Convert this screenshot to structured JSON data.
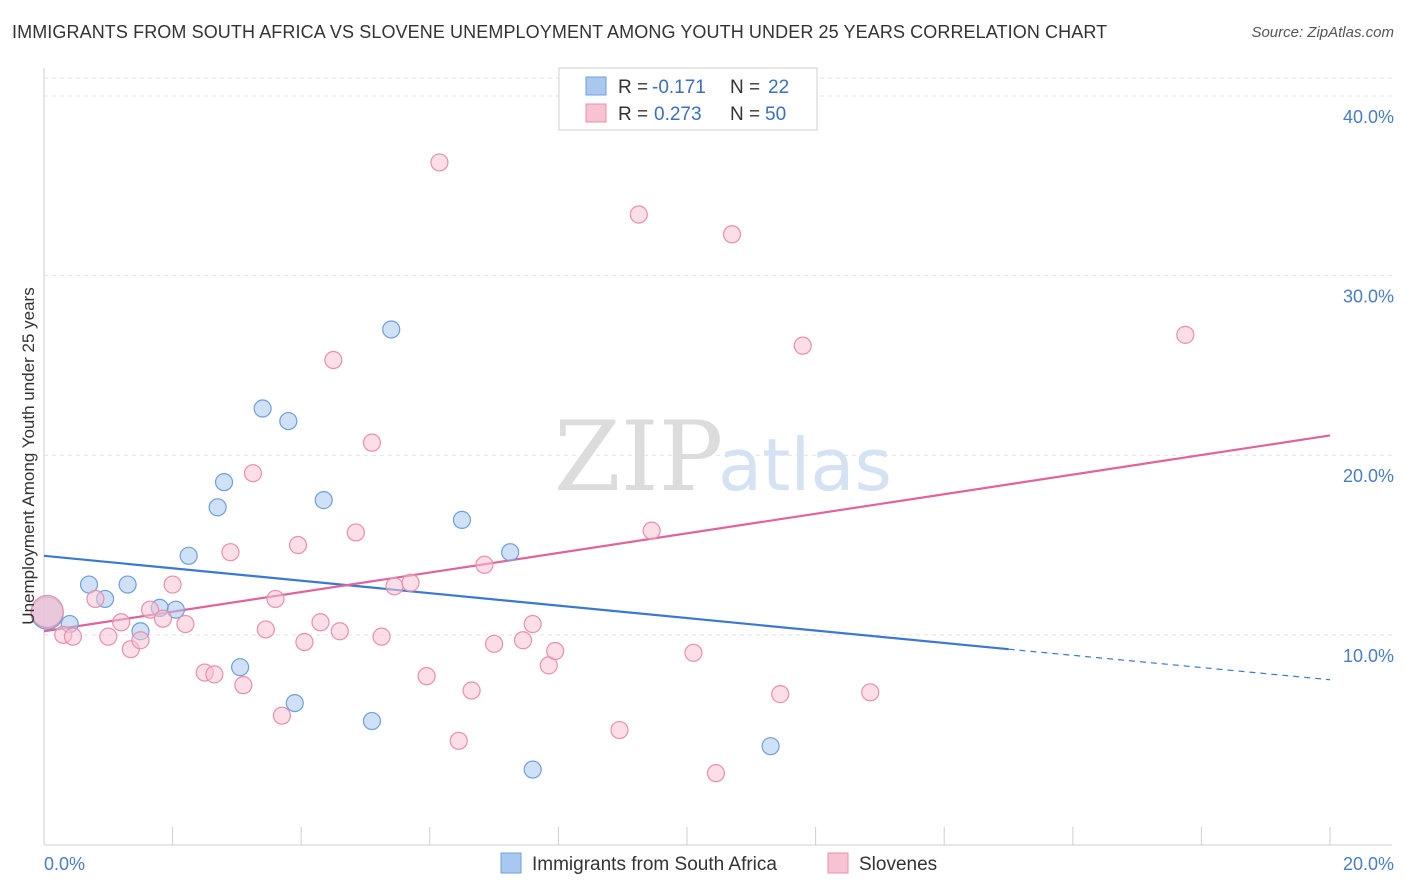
{
  "title": "IMMIGRANTS FROM SOUTH AFRICA VS SLOVENE UNEMPLOYMENT AMONG YOUTH UNDER 25 YEARS CORRELATION CHART",
  "source": "Source: ZipAtlas.com",
  "watermark": {
    "zip": "ZIP",
    "atlas": "atlas"
  },
  "chart_data": {
    "type": "scatter",
    "title": "IMMIGRANTS FROM SOUTH AFRICA VS SLOVENE UNEMPLOYMENT AMONG YOUTH UNDER 25 YEARS CORRELATION CHART",
    "xlabel": "",
    "ylabel": "Unemployment Among Youth under 25 years",
    "xlim": [
      0,
      20
    ],
    "ylim": [
      0,
      40
    ],
    "x_ticks": [
      0,
      20
    ],
    "x_tick_labels": [
      "0.0%",
      "20.0%"
    ],
    "y_ticks": [
      10,
      20,
      30,
      40
    ],
    "y_tick_labels": [
      "10.0%",
      "20.0%",
      "30.0%",
      "40.0%"
    ],
    "grid": true,
    "legend_placement": "top-center",
    "legend_box": [
      {
        "r_label": "R =",
        "r_value": "-0.171",
        "n_label": "N =",
        "n_value": "22",
        "color": "#a8c8f0"
      },
      {
        "r_label": "R =",
        "r_value": "0.273",
        "n_label": "N =",
        "n_value": "50",
        "color": "#f5b8cb"
      }
    ],
    "series": [
      {
        "name": "Immigrants from South Africa",
        "color": "#a8c8f0",
        "stroke": "#6f9fd8",
        "line_color": "#3b78d4",
        "trend": {
          "x0": 0,
          "y0": 14.4,
          "x1": 15.0,
          "y1": 9.2,
          "x_dash_end": 20.0,
          "y_dash_end": 7.5
        },
        "points": [
          [
            0.05,
            11.2
          ],
          [
            0.4,
            10.6
          ],
          [
            0.7,
            12.8
          ],
          [
            0.95,
            12.0
          ],
          [
            1.3,
            12.8
          ],
          [
            1.5,
            10.2
          ],
          [
            1.8,
            11.5
          ],
          [
            2.05,
            11.4
          ],
          [
            2.25,
            14.4
          ],
          [
            2.7,
            17.1
          ],
          [
            2.8,
            18.5
          ],
          [
            3.05,
            8.2
          ],
          [
            3.4,
            22.6
          ],
          [
            3.8,
            21.9
          ],
          [
            3.9,
            6.2
          ],
          [
            4.35,
            17.5
          ],
          [
            5.1,
            5.2
          ],
          [
            5.4,
            27.0
          ],
          [
            6.5,
            16.4
          ],
          [
            7.25,
            14.6
          ],
          [
            7.6,
            2.5
          ],
          [
            11.3,
            3.8
          ]
        ]
      },
      {
        "name": "Slovenes",
        "color": "#f7c3d3",
        "stroke": "#e98fab",
        "line_color": "#e0649a",
        "trend": {
          "x0": 0,
          "y0": 10.2,
          "x1": 20.0,
          "y1": 21.1
        },
        "points": [
          [
            0.05,
            11.3
          ],
          [
            0.3,
            10.0
          ],
          [
            0.45,
            9.9
          ],
          [
            0.8,
            12.0
          ],
          [
            1.0,
            9.9
          ],
          [
            1.2,
            10.7
          ],
          [
            1.35,
            9.2
          ],
          [
            1.5,
            9.7
          ],
          [
            1.65,
            11.4
          ],
          [
            1.85,
            10.9
          ],
          [
            2.0,
            12.8
          ],
          [
            2.2,
            10.6
          ],
          [
            2.5,
            7.9
          ],
          [
            2.65,
            7.8
          ],
          [
            2.9,
            14.6
          ],
          [
            3.1,
            7.2
          ],
          [
            3.25,
            19.0
          ],
          [
            3.45,
            10.3
          ],
          [
            3.6,
            12.0
          ],
          [
            3.7,
            5.5
          ],
          [
            3.95,
            15.0
          ],
          [
            4.05,
            9.6
          ],
          [
            4.3,
            10.7
          ],
          [
            4.5,
            25.3
          ],
          [
            4.6,
            10.2
          ],
          [
            4.85,
            15.7
          ],
          [
            5.1,
            20.7
          ],
          [
            5.25,
            9.9
          ],
          [
            5.45,
            12.7
          ],
          [
            5.7,
            12.9
          ],
          [
            5.95,
            7.7
          ],
          [
            6.15,
            36.3
          ],
          [
            6.45,
            4.1
          ],
          [
            6.65,
            6.9
          ],
          [
            6.85,
            13.9
          ],
          [
            7.0,
            9.5
          ],
          [
            7.45,
            9.7
          ],
          [
            7.6,
            10.6
          ],
          [
            7.85,
            8.3
          ],
          [
            7.95,
            9.1
          ],
          [
            8.95,
            4.7
          ],
          [
            9.25,
            33.4
          ],
          [
            9.45,
            15.8
          ],
          [
            10.1,
            9.0
          ],
          [
            10.45,
            2.3
          ],
          [
            10.7,
            32.3
          ],
          [
            11.45,
            6.7
          ],
          [
            11.8,
            26.1
          ],
          [
            12.85,
            6.8
          ],
          [
            17.75,
            26.7
          ]
        ]
      }
    ]
  },
  "legend_bottom": [
    {
      "label": "Immigrants from South Africa",
      "color": "#a8c8f0",
      "stroke": "#6f9fd8"
    },
    {
      "label": "Slovenes",
      "color": "#f7c3d3",
      "stroke": "#e98fab"
    }
  ]
}
